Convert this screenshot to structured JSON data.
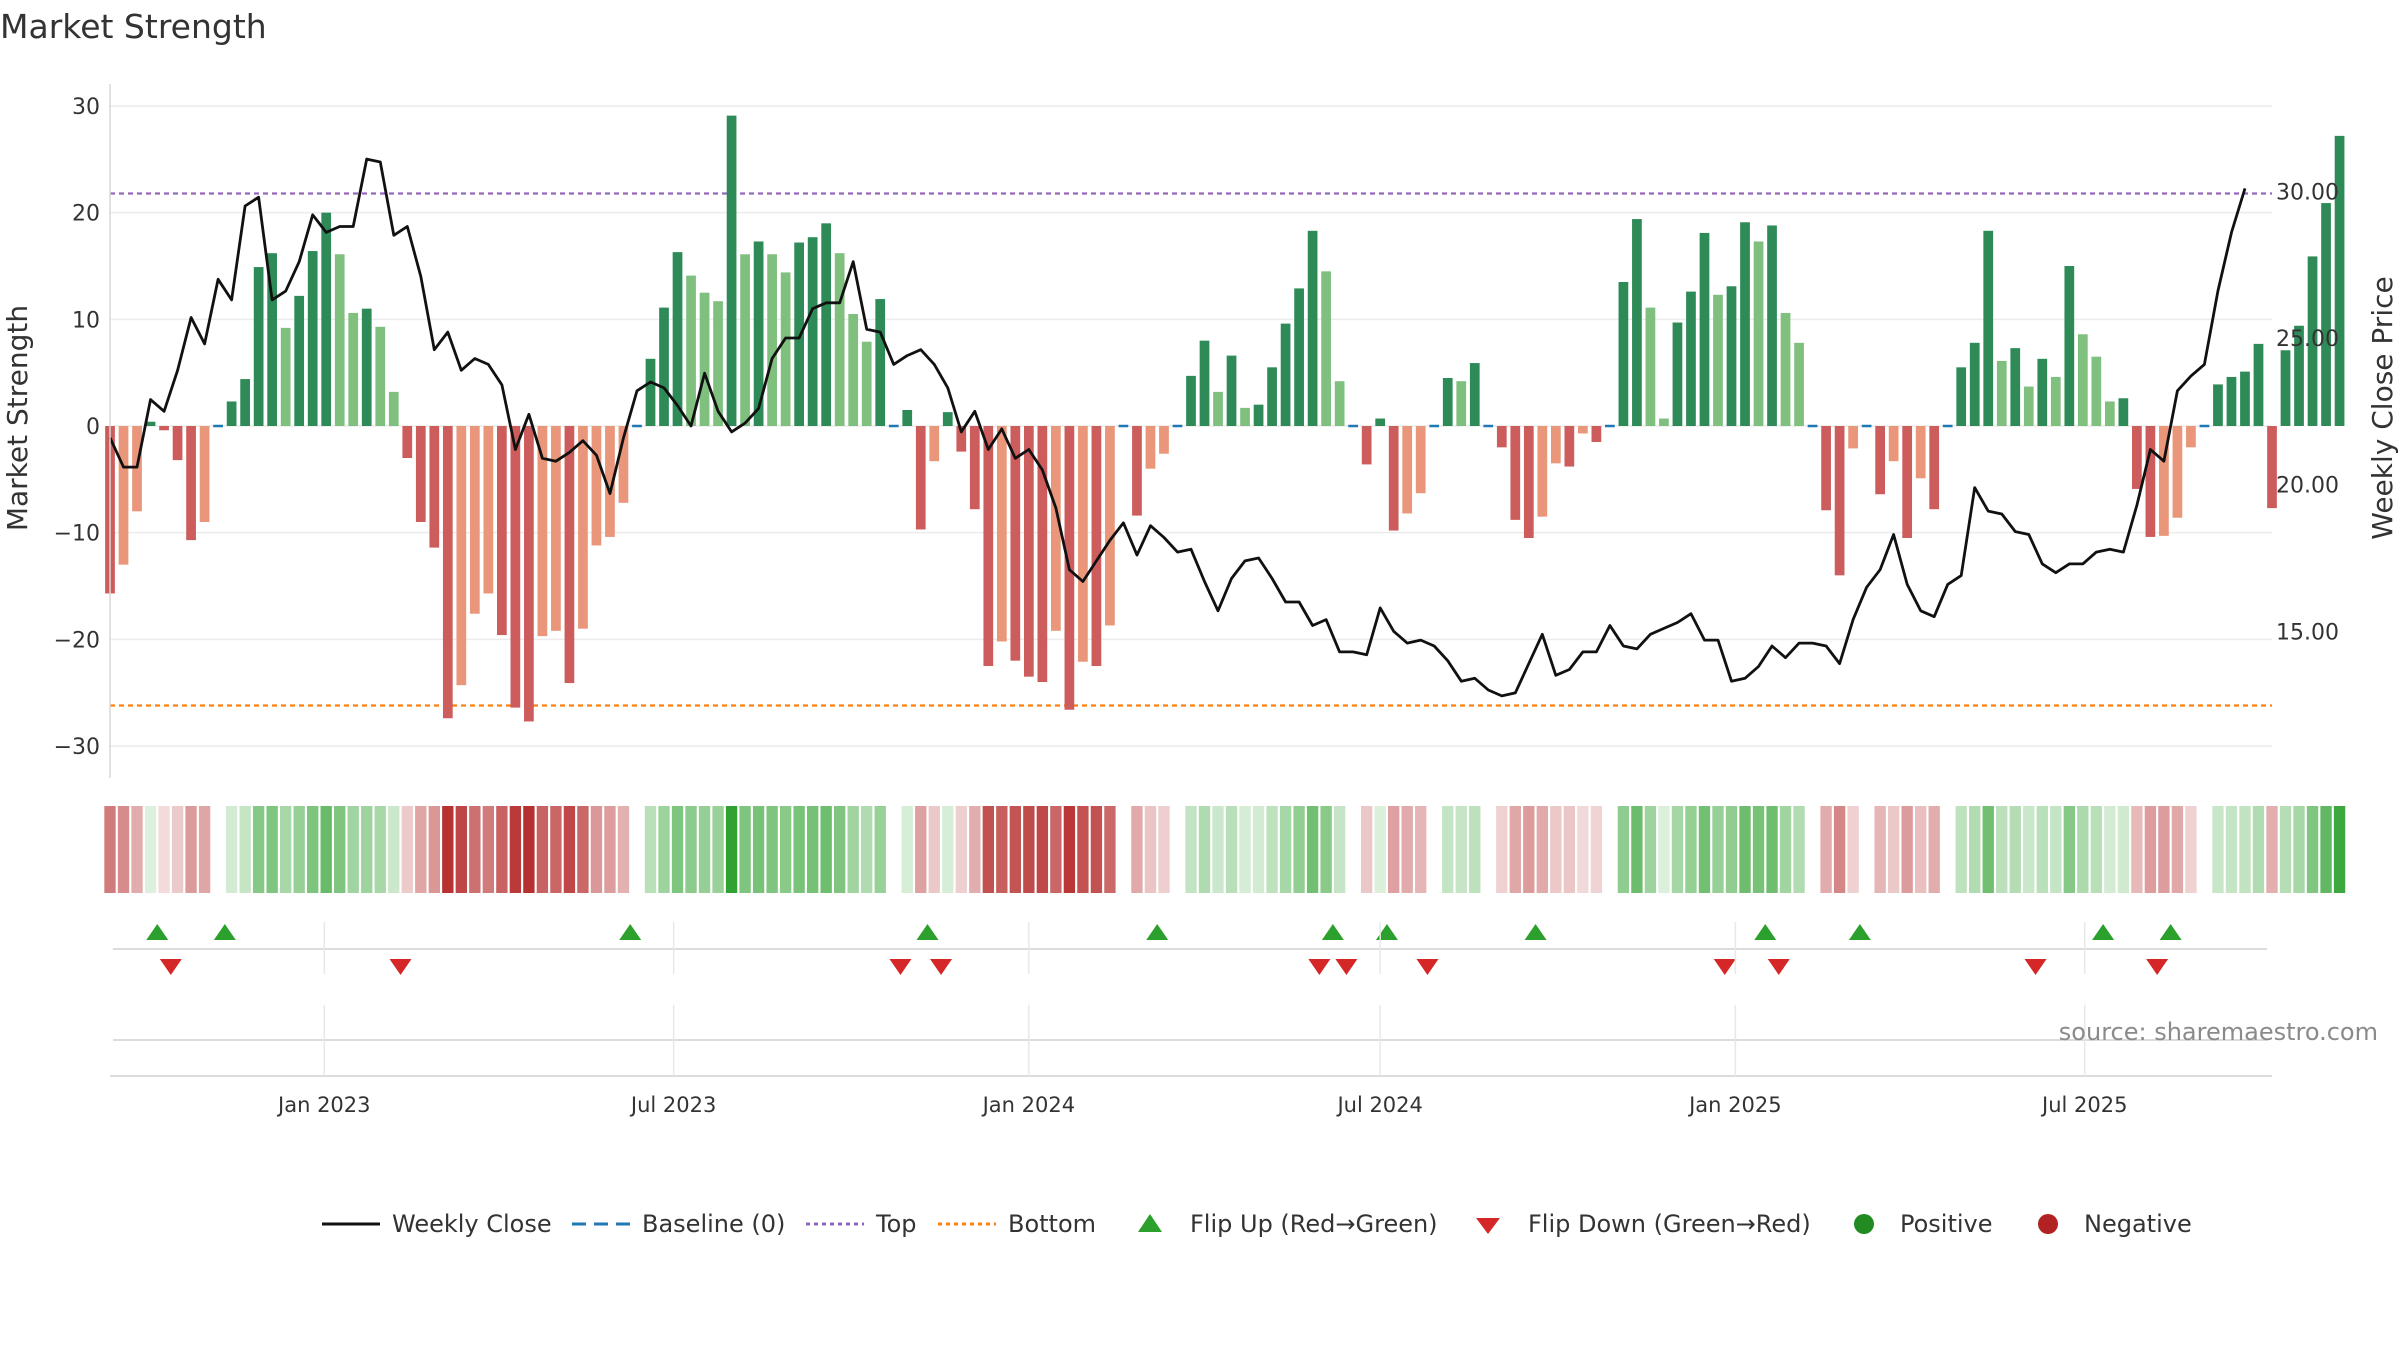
{
  "chart_data": {
    "type": "bar",
    "title": "Market Strength",
    "ylabel": "Market Strength",
    "y2label": "Weekly Close Price",
    "ylim": [
      -33,
      33
    ],
    "y2lim": [
      10,
      34
    ],
    "yticks": [
      30,
      20,
      10,
      0,
      -10,
      -20,
      -30
    ],
    "ytick_labels": [
      "30",
      "20",
      "10",
      "0",
      "−10",
      "−20",
      "−30"
    ],
    "y2ticks": [
      30,
      25,
      20,
      15
    ],
    "y2tick_labels": [
      "30.00",
      "25.00",
      "20.00",
      "15.00"
    ],
    "top_line": 21.8,
    "bottom_line": -26.2,
    "x_start": "2022-09-12",
    "x_end": "2025-10-06",
    "date_ticks": [
      {
        "date": "2023-01-01",
        "label": "Jan 2023"
      },
      {
        "date": "2023-07-01",
        "label": "Jul 2023"
      },
      {
        "date": "2024-01-01",
        "label": "Jan 2024"
      },
      {
        "date": "2024-07-01",
        "label": "Jul 2024"
      },
      {
        "date": "2025-01-01",
        "label": "Jan 2025"
      },
      {
        "date": "2025-07-01",
        "label": "Jul 2025"
      }
    ],
    "strength": [
      -15.7,
      -13,
      -8,
      0.4,
      -0.4,
      -3.2,
      -10.7,
      -9,
      0,
      2.3,
      4.4,
      14.9,
      16.2,
      9.2,
      12.2,
      16.4,
      20,
      16.1,
      10.6,
      11,
      9.3,
      3.2,
      -3,
      -9,
      -11.4,
      -27.4,
      -24.3,
      -17.6,
      -15.7,
      -19.6,
      -26.4,
      -27.7,
      -19.7,
      -19.2,
      -24.1,
      -19,
      -11.2,
      -10.4,
      -7.2,
      0,
      6.3,
      11.1,
      16.3,
      14.1,
      12.5,
      11.7,
      29.1,
      16.1,
      17.3,
      16.1,
      14.4,
      17.2,
      17.7,
      19,
      16.2,
      10.5,
      7.9,
      11.9,
      0,
      1.5,
      -9.7,
      -3.3,
      1.3,
      -2.4,
      -7.8,
      -22.5,
      -20.2,
      -22,
      -23.5,
      -24,
      -19.2,
      -26.6,
      -22.1,
      -22.5,
      -18.7,
      0,
      -8.4,
      -4,
      -2.6,
      0,
      4.7,
      8,
      3.2,
      6.6,
      1.7,
      2,
      5.5,
      9.6,
      12.9,
      18.3,
      14.5,
      4.2,
      0,
      -3.6,
      0.7,
      -9.8,
      -8.2,
      -6.3,
      0,
      4.5,
      4.2,
      5.9,
      0,
      -2,
      -8.8,
      -10.5,
      -8.5,
      -3.5,
      -3.8,
      -0.7,
      -1.5,
      0,
      13.5,
      19.4,
      11.1,
      0.7,
      9.7,
      12.6,
      18.1,
      12.3,
      13.1,
      19.1,
      17.3,
      18.8,
      10.6,
      7.8,
      0,
      -7.9,
      -14,
      -2.1,
      0,
      -6.4,
      -3.3,
      -10.5,
      -4.9,
      -7.8,
      0,
      5.5,
      7.8,
      18.3,
      6.1,
      7.3,
      3.7,
      6.3,
      4.6,
      15,
      8.6,
      6.5,
      2.3,
      2.6,
      -5.9,
      -10.4,
      -10.3,
      -8.6,
      -2,
      0,
      3.9,
      4.6,
      5.1,
      7.7,
      -7.7,
      7.1,
      9.4,
      15.9,
      20.9,
      27.2
    ],
    "close": [
      21.6,
      20.6,
      20.6,
      22.9,
      22.5,
      23.9,
      25.7,
      24.8,
      27,
      26.3,
      29.5,
      29.8,
      26.3,
      26.6,
      27.6,
      29.2,
      28.6,
      28.8,
      28.8,
      31.1,
      31,
      28.5,
      28.8,
      27.1,
      24.6,
      25.2,
      23.9,
      24.3,
      24.1,
      23.4,
      21.2,
      22.4,
      20.9,
      20.8,
      21.1,
      21.5,
      21,
      19.7,
      21.6,
      23.2,
      23.5,
      23.3,
      22.7,
      22,
      23.8,
      22.5,
      21.8,
      22.1,
      22.6,
      24.3,
      25,
      25,
      26,
      26.2,
      26.2,
      27.6,
      25.3,
      25.2,
      24.1,
      24.4,
      24.6,
      24.1,
      23.3,
      21.8,
      22.5,
      21.2,
      21.9,
      20.9,
      21.2,
      20.5,
      19.2,
      17.1,
      16.7,
      17.4,
      18.1,
      18.7,
      17.6,
      18.6,
      18.2,
      17.7,
      17.8,
      16.7,
      15.7,
      16.8,
      17.4,
      17.5,
      16.8,
      16,
      16,
      15.2,
      15.4,
      14.3,
      14.3,
      14.2,
      15.8,
      15,
      14.6,
      14.7,
      14.5,
      14,
      13.3,
      13.4,
      13,
      12.8,
      12.9,
      13.9,
      14.9,
      13.5,
      13.7,
      14.3,
      14.3,
      15.2,
      14.5,
      14.4,
      14.9,
      15.1,
      15.3,
      15.6,
      14.7,
      14.7,
      13.3,
      13.4,
      13.8,
      14.5,
      14.1,
      14.6,
      14.6,
      14.5,
      13.9,
      15.4,
      16.5,
      17.1,
      18.3,
      16.6,
      15.7,
      15.5,
      16.6,
      16.9,
      19.9,
      19.1,
      19,
      18.4,
      18.3,
      17.3,
      17,
      17.3,
      17.3,
      17.7,
      17.8,
      17.7,
      19.3,
      21.2,
      20.8,
      23.2,
      23.7,
      24.1,
      26.6,
      28.6,
      30.1
    ],
    "flips_up": [
      3,
      8,
      38,
      60,
      77,
      90,
      94,
      105,
      122,
      129,
      147,
      152
    ],
    "flips_down": [
      4,
      21,
      58,
      61,
      89,
      91,
      97,
      119,
      123,
      142,
      151
    ],
    "band_colors": {
      "pos_dark": "#2e8b57",
      "pos_light": "#7fc07f",
      "neg_dark": "#cd5c5c",
      "neg_light": "#e9967a",
      "line": "#111111",
      "baseline": "#1f77b4",
      "top": "#9467bd",
      "bottom": "#ff7f0e",
      "flip_up": "#2ca02c",
      "flip_down": "#d62728",
      "positive": "#228b22",
      "negative": "#b22222"
    },
    "legend": [
      "Weekly Close",
      "Baseline (0)",
      "Top",
      "Bottom",
      "Flip Up (Red→Green)",
      "Flip Down (Green→Red)",
      "Positive",
      "Negative"
    ],
    "source": "source: sharemaestro.com"
  }
}
